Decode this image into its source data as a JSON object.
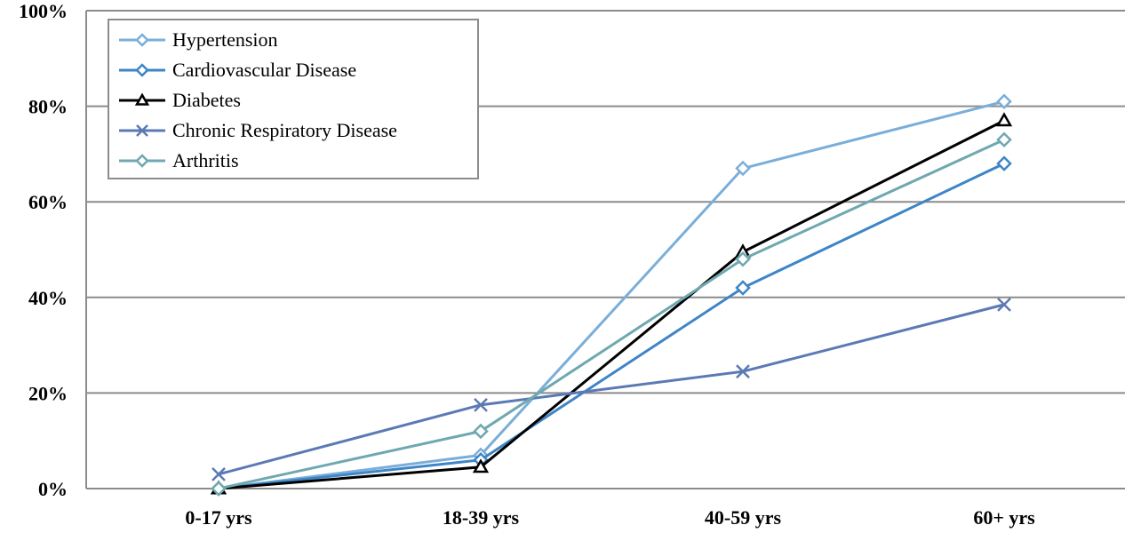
{
  "chart_data": {
    "type": "line",
    "categories": [
      "0-17 yrs",
      "18-39 yrs",
      "40-59 yrs",
      "60+ yrs"
    ],
    "ylim": [
      0,
      100
    ],
    "yticks": [
      "0%",
      "20%",
      "40%",
      "60%",
      "80%",
      "100%"
    ],
    "grid": true,
    "legend_position": "top-left",
    "series": [
      {
        "name": "Hypertension",
        "values": [
          0,
          7,
          67,
          81
        ],
        "color": "#7aaed9",
        "marker": "diamond"
      },
      {
        "name": "Cardiovascular Disease",
        "values": [
          0,
          6,
          42,
          68
        ],
        "color": "#3d85c6",
        "marker": "diamond"
      },
      {
        "name": "Diabetes",
        "values": [
          0,
          4.5,
          49.5,
          77
        ],
        "color": "#000000",
        "marker": "triangle"
      },
      {
        "name": "Chronic Respiratory Disease",
        "values": [
          3,
          17.5,
          24.5,
          38.5
        ],
        "color": "#5b79b5",
        "marker": "x"
      },
      {
        "name": "Arthritis",
        "values": [
          0,
          12,
          48,
          73
        ],
        "color": "#6fa8b0",
        "marker": "diamond"
      }
    ]
  }
}
